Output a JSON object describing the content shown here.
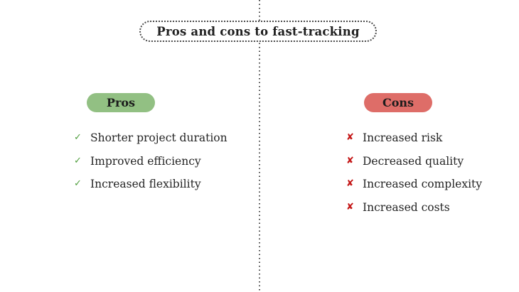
{
  "title": {
    "text": "Pros and cons to fast-tracking"
  },
  "colors": {
    "background": "#ffffff",
    "divider_dots": "#4a4a4a",
    "text": "#242424"
  },
  "pros_column": {
    "badge_label": "Pros",
    "badge_color": "#92c083",
    "icon": "✓",
    "icon_name": "check-icon",
    "icon_color": "#4f9e3d",
    "items": [
      "Shorter project duration",
      "Improved efficiency",
      "Increased flexibility"
    ]
  },
  "cons_column": {
    "badge_label": "Cons",
    "badge_color": "#de6d68",
    "icon": "✘",
    "icon_name": "x-icon",
    "icon_color": "#c41616",
    "items": [
      "Increased risk",
      "Decreased quality",
      "Increased complexity",
      "Increased costs"
    ]
  }
}
